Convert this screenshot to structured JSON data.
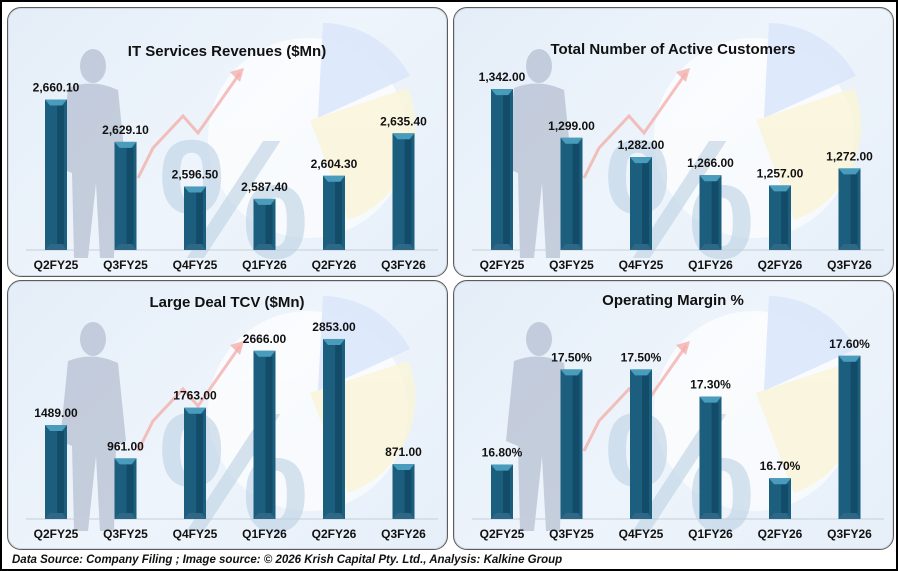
{
  "footer": {
    "text": "Data Source: Company Filing ; Image source: © 2026 Krish Capital Pty. Ltd., Analysis: Kalkine Group"
  },
  "colors": {
    "bar_main": "#1b5e7e",
    "bar_dark": "#134c68",
    "bar_top": "#4a9cbd",
    "panel_border": "#5c5c5c",
    "text": "#111111"
  },
  "chart_data": [
    {
      "type": "bar",
      "title": "IT Services Revenues ($Mn)",
      "categories": [
        "Q2FY25",
        "Q3FY25",
        "Q4FY25",
        "Q1FY26",
        "Q2FY26",
        "Q3FY26"
      ],
      "values": [
        2660.1,
        2629.1,
        2596.5,
        2587.4,
        2604.3,
        2635.4
      ],
      "labels": [
        "2,660.10",
        "2,629.10",
        "2,596.50",
        "2,587.40",
        "2,604.30",
        "2,635.40"
      ],
      "xlabel": "",
      "ylabel": "",
      "ylim": [
        2550,
        2670
      ],
      "grid": false,
      "legend": "none"
    },
    {
      "type": "bar",
      "title": "Total Number of Active Customers",
      "categories": [
        "Q2FY25",
        "Q3FY25",
        "Q4FY25",
        "Q1FY26",
        "Q2FY26",
        "Q3FY26"
      ],
      "values": [
        1342.0,
        1299.0,
        1282.0,
        1266.0,
        1257.0,
        1272.0
      ],
      "labels": [
        "1,342.00",
        "1,299.00",
        "1,282.00",
        "1,266.00",
        "1,257.00",
        "1,272.00"
      ],
      "xlabel": "",
      "ylabel": "",
      "ylim": [
        1200,
        1350
      ],
      "grid": false,
      "legend": "none"
    },
    {
      "type": "bar",
      "title": "Large Deal TCV ($Mn)",
      "categories": [
        "Q2FY25",
        "Q3FY25",
        "Q4FY25",
        "Q1FY26",
        "Q2FY26",
        "Q3FY26"
      ],
      "values": [
        1489.0,
        961.0,
        1763.0,
        2666.0,
        2853.0,
        871.0
      ],
      "labels": [
        "1489.00",
        "961.00",
        "1763.00",
        "2666.00",
        "2853.00",
        "871.00"
      ],
      "xlabel": "",
      "ylabel": "",
      "ylim": [
        0,
        2900
      ],
      "grid": false,
      "legend": "none"
    },
    {
      "type": "bar",
      "title": "Operating Margin %",
      "categories": [
        "Q2FY25",
        "Q3FY25",
        "Q4FY25",
        "Q1FY26",
        "Q2FY26",
        "Q3FY26"
      ],
      "values": [
        16.8,
        17.5,
        17.5,
        17.3,
        16.7,
        17.6
      ],
      "labels": [
        "16.80%",
        "17.50%",
        "17.50%",
        "17.30%",
        "16.70%",
        "17.60%"
      ],
      "xlabel": "",
      "ylabel": "",
      "ylim": [
        16.4,
        17.65
      ],
      "grid": false,
      "legend": "none"
    }
  ]
}
